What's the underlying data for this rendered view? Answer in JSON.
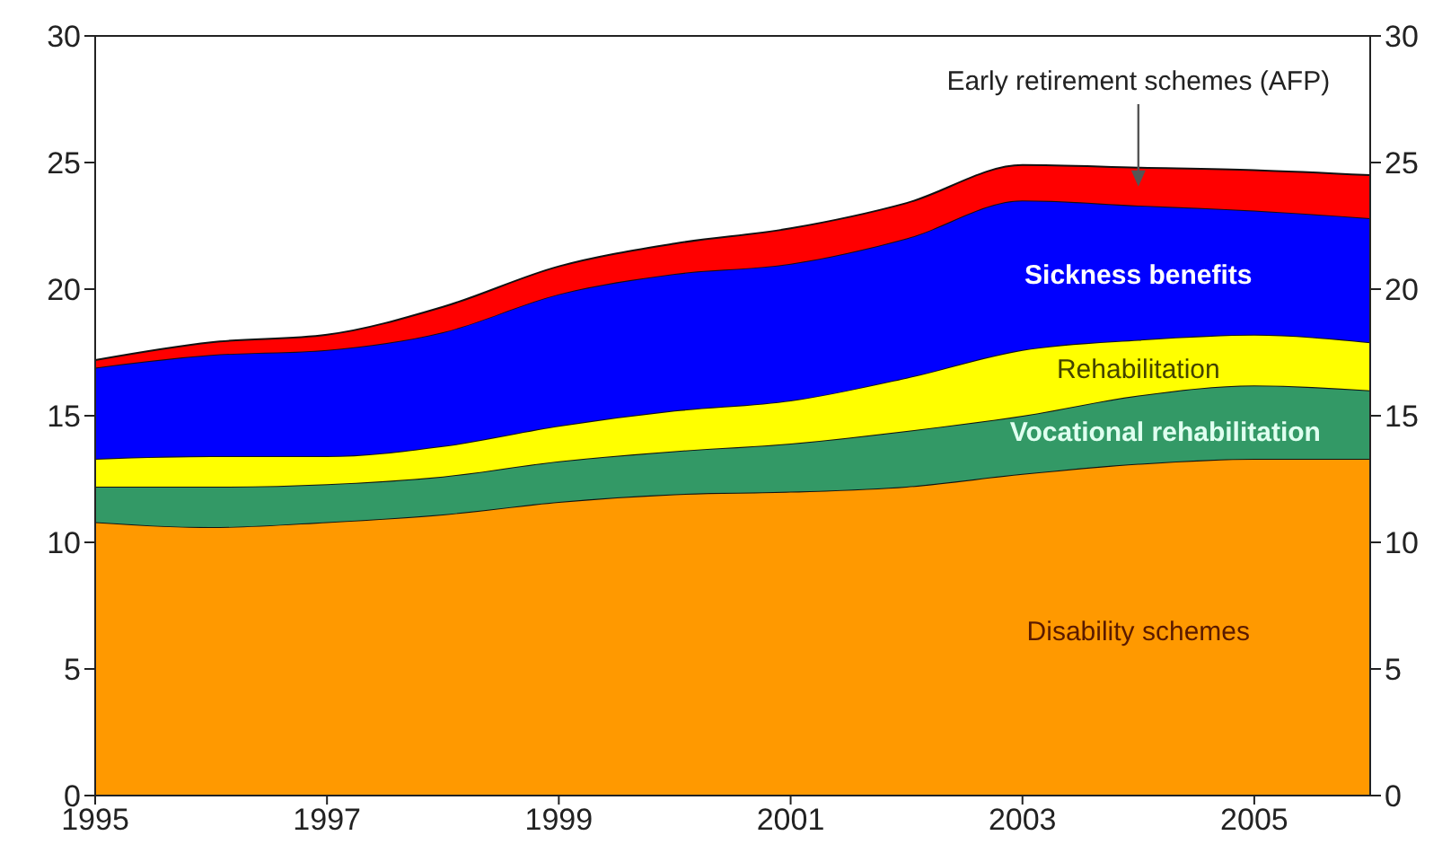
{
  "chart_data": {
    "type": "area",
    "stacked": true,
    "x": [
      1995,
      1996,
      1997,
      1998,
      1999,
      2000,
      2001,
      2002,
      2003,
      2004,
      2005,
      2006
    ],
    "series": [
      {
        "name": "Disability schemes",
        "color": "#ff9900",
        "values": [
          10.8,
          10.6,
          10.8,
          11.1,
          11.6,
          11.9,
          12.0,
          12.2,
          12.7,
          13.1,
          13.3,
          13.3
        ]
      },
      {
        "name": "Vocational rehabilitation",
        "color": "#339966",
        "values": [
          1.4,
          1.6,
          1.5,
          1.5,
          1.6,
          1.7,
          1.9,
          2.2,
          2.3,
          2.7,
          2.9,
          2.7
        ]
      },
      {
        "name": "Rehabilitation",
        "color": "#ffff00",
        "values": [
          1.1,
          1.2,
          1.1,
          1.2,
          1.4,
          1.6,
          1.7,
          2.1,
          2.6,
          2.2,
          2.0,
          1.9
        ]
      },
      {
        "name": "Sickness benefits",
        "color": "#0000ff",
        "values": [
          3.6,
          4.0,
          4.2,
          4.5,
          5.2,
          5.4,
          5.4,
          5.5,
          5.9,
          5.3,
          4.9,
          4.9
        ]
      },
      {
        "name": "Early retirement schemes (AFP)",
        "color": "#ff0000",
        "values": [
          0.3,
          0.5,
          0.6,
          1.0,
          1.1,
          1.2,
          1.4,
          1.4,
          1.4,
          1.5,
          1.6,
          1.7
        ]
      }
    ],
    "xlim": [
      1995,
      2006
    ],
    "xticks": [
      1995,
      1997,
      1999,
      2001,
      2003,
      2005
    ],
    "ylim": [
      0,
      30
    ],
    "yticks": [
      0,
      5,
      10,
      15,
      20,
      25,
      30
    ],
    "y2lim": [
      0,
      30
    ],
    "y2ticks": [
      0,
      5,
      10,
      15,
      20,
      25,
      30
    ],
    "grid": false
  }
}
